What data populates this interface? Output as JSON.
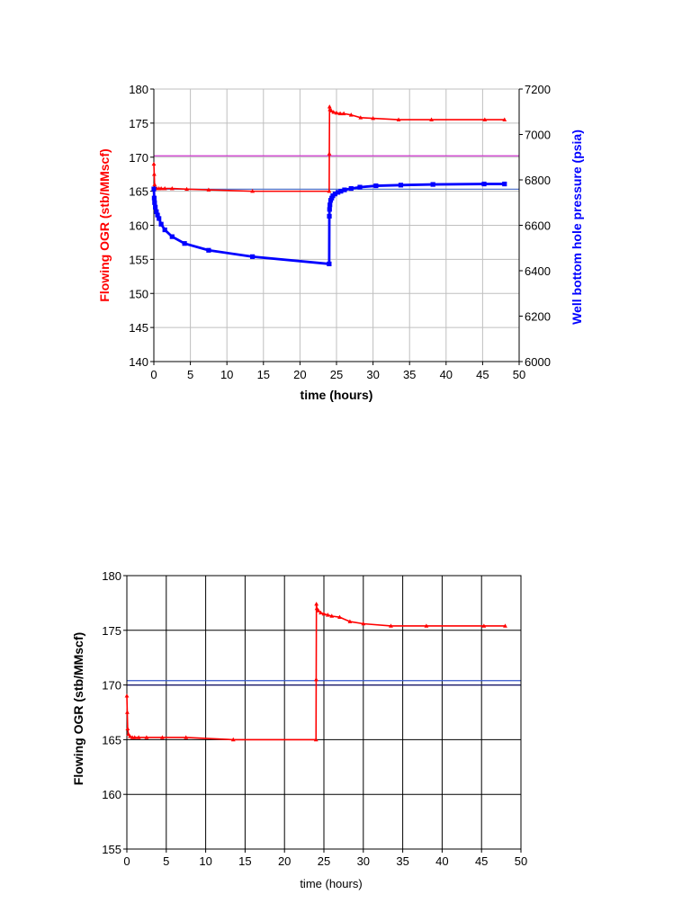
{
  "chart_data": [
    {
      "type": "line",
      "xlabel": "time (hours)",
      "ylabel_left": "Flowing OGR (stb/MMscf)",
      "ylabel_right": "Well bottom hole pressure (psia)",
      "xlim": [
        0,
        50
      ],
      "ylim_left": [
        140,
        180
      ],
      "ylim_right": [
        6000,
        7200
      ],
      "x_ticks": [
        "0",
        "5",
        "10",
        "15",
        "20",
        "25",
        "30",
        "35",
        "40",
        "45",
        "50"
      ],
      "y_ticks_left": [
        "140",
        "145",
        "150",
        "155",
        "160",
        "165",
        "170",
        "175",
        "180"
      ],
      "y_ticks_right": [
        "6000",
        "6200",
        "6400",
        "6600",
        "6800",
        "7000",
        "7200"
      ],
      "grid": true,
      "colors": {
        "ogr": "#ff0000",
        "pressure": "#0000ff",
        "ref_line_1": "#cc33cc",
        "ref_line_2": "#5577cc"
      },
      "reference_lines": [
        {
          "axis": "left",
          "y": 170.2,
          "color": "#cc33cc"
        },
        {
          "axis": "left",
          "y": 165.3,
          "color": "#5577cc"
        }
      ],
      "series": [
        {
          "axis": "left",
          "color": "#ff0000",
          "marker": "triangle",
          "x": [
            0.0,
            0.05,
            0.1,
            0.2,
            0.4,
            0.7,
            1.0,
            1.5,
            2.5,
            4.5,
            7.5,
            13.5,
            24.0,
            24.02,
            24.05,
            24.1,
            24.3,
            24.6,
            25.0,
            25.5,
            26.0,
            27.0,
            28.3,
            30.0,
            33.5,
            38.0,
            45.3,
            48.0
          ],
          "y": [
            169.0,
            167.5,
            166.0,
            165.5,
            165.4,
            165.4,
            165.4,
            165.4,
            165.4,
            165.3,
            165.2,
            165.0,
            165.0,
            170.5,
            177.4,
            177.0,
            176.8,
            176.6,
            176.5,
            176.4,
            176.4,
            176.2,
            175.8,
            175.7,
            175.5,
            175.5,
            175.5,
            175.5
          ]
        },
        {
          "axis": "right",
          "color": "#0000ff",
          "marker": "square",
          "x": [
            0.0,
            0.05,
            0.1,
            0.2,
            0.35,
            0.5,
            0.7,
            1.0,
            1.5,
            2.5,
            4.2,
            7.5,
            13.5,
            24.0,
            24.02,
            24.05,
            24.1,
            24.2,
            24.35,
            24.5,
            24.8,
            25.2,
            25.6,
            26.1,
            27.0,
            28.2,
            30.4,
            33.8,
            38.2,
            45.2,
            48.0
          ],
          "y": [
            6760,
            6720,
            6700,
            6680,
            6660,
            6645,
            6630,
            6605,
            6580,
            6550,
            6520,
            6490,
            6462,
            6430,
            6640,
            6670,
            6690,
            6710,
            6720,
            6730,
            6738,
            6745,
            6750,
            6756,
            6762,
            6768,
            6774,
            6777,
            6780,
            6782,
            6782
          ]
        }
      ]
    },
    {
      "type": "line",
      "xlabel": "time (hours)",
      "ylabel": "Flowing OGR (stb/MMscf)",
      "xlim": [
        0,
        50
      ],
      "ylim": [
        155,
        180
      ],
      "x_ticks": [
        "0",
        "5",
        "10",
        "15",
        "20",
        "25",
        "30",
        "35",
        "40",
        "45",
        "50"
      ],
      "y_ticks": [
        "155",
        "160",
        "165",
        "170",
        "175",
        "180"
      ],
      "grid": true,
      "colors": {
        "ogr": "#ff0000",
        "ref_line_1": "#3355cc",
        "ref_line_2": "#111166"
      },
      "reference_lines": [
        {
          "y": 170.4,
          "color": "#3355cc"
        },
        {
          "y": 170.0,
          "color": "#111166"
        }
      ],
      "series": [
        {
          "color": "#ff0000",
          "marker": "triangle",
          "x": [
            0.0,
            0.05,
            0.1,
            0.2,
            0.4,
            0.7,
            1.0,
            1.5,
            2.5,
            4.5,
            7.5,
            13.5,
            24.0,
            24.02,
            24.05,
            24.1,
            24.3,
            24.6,
            25.0,
            25.5,
            26.0,
            27.0,
            28.3,
            30.0,
            33.5,
            38.0,
            45.3,
            48.0
          ],
          "y": [
            169.0,
            167.5,
            166.0,
            165.5,
            165.3,
            165.2,
            165.2,
            165.2,
            165.2,
            165.2,
            165.2,
            165.0,
            165.0,
            170.5,
            177.4,
            177.0,
            176.8,
            176.6,
            176.5,
            176.4,
            176.3,
            176.2,
            175.8,
            175.6,
            175.4,
            175.4,
            175.4,
            175.4
          ]
        }
      ]
    }
  ]
}
